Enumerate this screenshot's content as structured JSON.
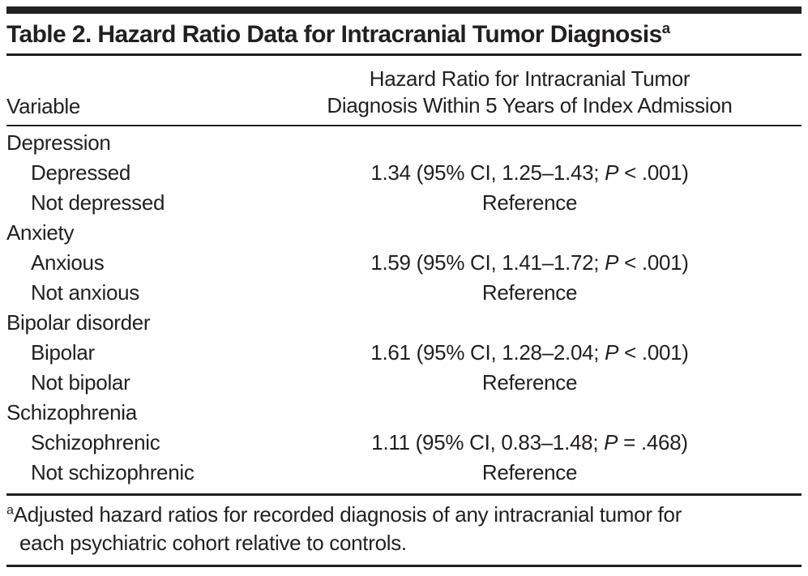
{
  "table": {
    "title": "Table 2. Hazard Ratio Data for Intracranial Tumor Diagnosis",
    "title_sup": "a",
    "columns": {
      "variable": "Variable",
      "hazard_line1": "Hazard Ratio for Intracranial Tumor",
      "hazard_line2": "Diagnosis Within 5 Years of Index Admission"
    },
    "rows": [
      {
        "label": "Depression"
      },
      {
        "label": "Depressed",
        "value_pre": "1.34 (95% CI, 1.25–1.43; ",
        "value_p": "P",
        "value_post": " < .001)"
      },
      {
        "label": "Not depressed",
        "value_pre": "Reference"
      },
      {
        "label": "Anxiety"
      },
      {
        "label": "Anxious",
        "value_pre": "1.59 (95% CI, 1.41–1.72; ",
        "value_p": "P",
        "value_post": " < .001)"
      },
      {
        "label": "Not anxious",
        "value_pre": "Reference"
      },
      {
        "label": "Bipolar disorder"
      },
      {
        "label": "Bipolar",
        "value_pre": "1.61 (95% CI, 1.28–2.04; ",
        "value_p": "P",
        "value_post": " < .001)"
      },
      {
        "label": "Not bipolar",
        "value_pre": "Reference"
      },
      {
        "label": "Schizophrenia"
      },
      {
        "label": "Schizophrenic",
        "value_pre": "1.11 (95% CI, 0.83–1.48; ",
        "value_p": "P",
        "value_post": " = .468)"
      },
      {
        "label": "Not schizophrenic",
        "value_pre": "Reference"
      }
    ],
    "footnote_sup": "a",
    "footnote_line1": "Adjusted hazard ratios for recorded diagnosis of any intracranial tumor for",
    "footnote_line2": "each psychiatric cohort relative to controls."
  }
}
